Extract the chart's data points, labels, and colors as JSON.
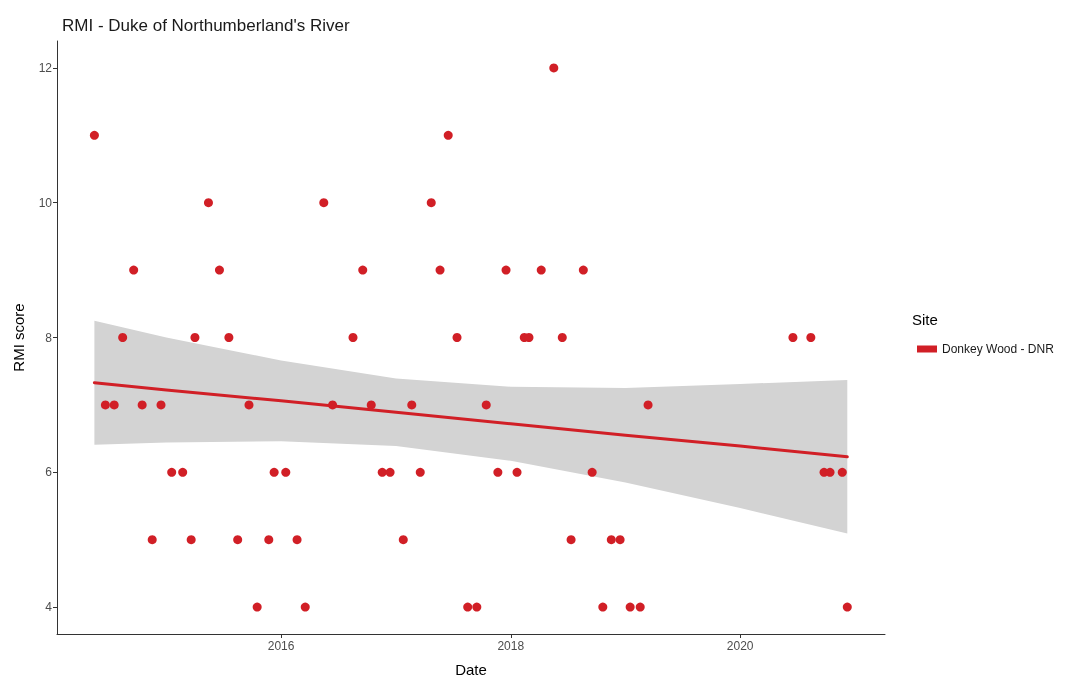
{
  "chart_data": {
    "type": "scatter",
    "title": "RMI - Duke of Northumberland's River",
    "xlabel": "Date",
    "ylabel": "RMI score",
    "legend_title": "Site",
    "legend": "right",
    "xlim": [
      "2014-01-18",
      "2021-04-06"
    ],
    "xticks": [
      "2016",
      "2018",
      "2020"
    ],
    "ylim": [
      3.6,
      12.4
    ],
    "yticks": [
      4,
      6,
      8,
      10,
      12
    ],
    "series": [
      {
        "color": "#d11f26",
        "marker": "circle",
        "x": [
          "2014-05-17",
          "2014-06-21",
          "2014-07-19",
          "2014-08-15",
          "2014-09-19",
          "2014-10-16",
          "2014-11-17",
          "2014-12-15",
          "2015-01-18",
          "2015-02-22",
          "2015-03-21",
          "2015-04-02",
          "2015-05-15",
          "2015-06-19",
          "2015-07-19",
          "2015-08-16",
          "2015-09-21",
          "2015-10-17",
          "2015-11-23",
          "2015-12-10",
          "2016-01-16",
          "2016-02-21",
          "2016-03-18",
          "2016-05-16",
          "2016-06-13",
          "2016-08-17",
          "2016-09-17",
          "2016-10-14",
          "2016-11-18",
          "2016-12-13",
          "2017-01-24",
          "2017-02-20",
          "2017-03-19",
          "2017-04-23",
          "2017-05-21",
          "2017-06-16",
          "2017-07-14",
          "2017-08-17",
          "2017-09-15",
          "2017-10-15",
          "2017-11-21",
          "2017-12-17",
          "2018-01-21",
          "2018-02-13",
          "2018-02-28",
          "2018-04-08",
          "2018-05-18",
          "2018-06-14",
          "2018-07-12",
          "2018-08-20",
          "2018-09-17",
          "2018-10-21",
          "2018-11-17",
          "2018-12-15",
          "2019-01-16",
          "2019-02-17",
          "2019-03-14",
          "2020-06-17",
          "2020-08-13",
          "2020-09-24",
          "2020-10-13",
          "2020-11-21",
          "2020-12-07"
        ],
        "values": [
          11,
          7,
          7,
          8,
          9,
          7,
          5,
          7,
          6,
          6,
          5,
          8,
          10,
          9,
          8,
          5,
          7,
          4,
          5,
          6,
          6,
          5,
          4,
          10,
          7,
          8,
          9,
          7,
          6,
          6,
          5,
          7,
          6,
          10,
          9,
          11,
          8,
          4,
          4,
          7,
          6,
          9,
          6,
          8,
          8,
          9,
          12,
          8,
          5,
          9,
          6,
          4,
          5,
          5,
          4,
          4,
          7,
          8,
          8,
          6,
          6,
          6,
          4
        ]
      },
      {
        "type": "line",
        "name": "Donkey Wood - DNR",
        "color": "#d11f26",
        "marker": "none",
        "line_style": "solid",
        "x": [
          "2014-05-17",
          "2015-01-01",
          "2016-01-01",
          "2017-01-01",
          "2018-01-01",
          "2019-01-01",
          "2020-01-01",
          "2020-12-07"
        ],
        "values": [
          7.33,
          7.22,
          7.06,
          6.89,
          6.72,
          6.55,
          6.39,
          6.23
        ],
        "lower": [
          6.41,
          6.44,
          6.46,
          6.39,
          6.17,
          5.85,
          5.47,
          5.09
        ],
        "upper": [
          8.25,
          8.0,
          7.66,
          7.39,
          7.27,
          7.25,
          7.31,
          7.37
        ]
      }
    ]
  }
}
